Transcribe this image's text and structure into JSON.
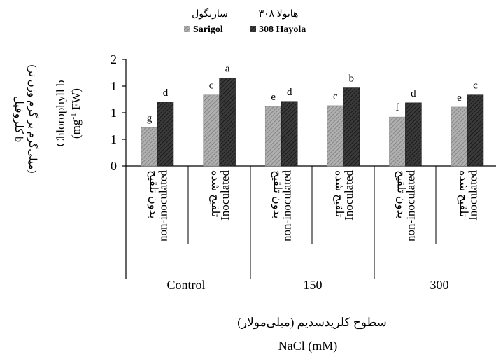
{
  "legend": {
    "items": [
      {
        "name_fa": "ساریگول",
        "name_en": "Sarigol",
        "color": "#9a9a9a",
        "pattern": "light-hatch"
      },
      {
        "name_fa": "هایولا ۳۰۸",
        "name_en": "308 Hayola",
        "color": "#2a2a2a",
        "pattern": "dark-hatch"
      }
    ]
  },
  "y_axis": {
    "label_fa_1": "کلروفیل b",
    "label_fa_2": "(میلی‌گرم بر گرم وزن تر)",
    "label_en_1": "Chlorophyll b",
    "label_en_2_pre": "(mg",
    "label_en_2_sup": "-1",
    "label_en_2_post": " FW)",
    "tick_labels": [
      "0",
      "1",
      "1",
      "1",
      "2"
    ]
  },
  "x_axis": {
    "label_fa": "سطوح کلریدسدیم (میلی‌مولار)",
    "label_en": "NaCl (mM)"
  },
  "chart_data": {
    "type": "bar",
    "categories": [
      {
        "fa": "بدون تلقیح",
        "en": "non-inoculated"
      },
      {
        "fa": "تلقیح شده",
        "en": "Inoculated"
      },
      {
        "fa": "بدون تلقیح",
        "en": "non-inoculated"
      },
      {
        "fa": "تلقیح شده",
        "en": "Inoculated"
      },
      {
        "fa": "بدون تلقیح",
        "en": "non-inoculated"
      },
      {
        "fa": "تلقیح شده",
        "en": "Inoculated"
      }
    ],
    "groups": [
      "Control",
      "150",
      "300"
    ],
    "series": [
      {
        "name": "Sarigol",
        "values": [
          0.54,
          1.0,
          0.84,
          0.85,
          0.69,
          0.83
        ],
        "letters": [
          "g",
          "c",
          "e",
          "c",
          "f",
          "e"
        ]
      },
      {
        "name": "308 Hayola",
        "values": [
          0.9,
          1.24,
          0.91,
          1.1,
          0.89,
          1.0
        ],
        "letters": [
          "d",
          "a",
          "d",
          "b",
          "d",
          "c"
        ]
      }
    ],
    "ylim": [
      0,
      1.5
    ],
    "y_ticks": [
      0,
      0.375,
      0.75,
      1.125,
      1.5
    ],
    "grid": false,
    "legend_position": "top"
  }
}
